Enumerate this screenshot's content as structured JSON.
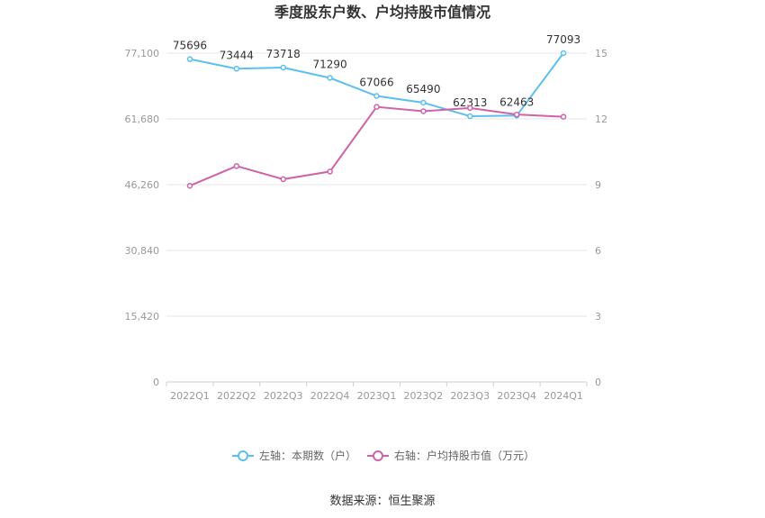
{
  "chart_data": {
    "type": "line",
    "title": "季度股东户数、户均持股市值情况",
    "categories": [
      "2022Q1",
      "2022Q2",
      "2022Q3",
      "2022Q4",
      "2023Q1",
      "2023Q2",
      "2023Q3",
      "2023Q4",
      "2024Q1"
    ],
    "y_left": {
      "ticks": [
        "0",
        "15,420",
        "30,840",
        "46,260",
        "61,680",
        "77,100"
      ],
      "range": [
        0,
        77100
      ]
    },
    "y_right": {
      "ticks": [
        "0",
        "3",
        "6",
        "9",
        "12",
        "15"
      ],
      "range": [
        0,
        15
      ]
    },
    "grid": true,
    "legend_position": "bottom",
    "series": [
      {
        "name": "左轴：本期数（户）",
        "axis": "left",
        "color": "#5bbfef",
        "values": [
          75696,
          73444,
          73718,
          71290,
          67066,
          65490,
          62313,
          62463,
          77093
        ],
        "labels": [
          "75696",
          "73444",
          "73718",
          "71290",
          "67066",
          "65490",
          "62313",
          "62463",
          "77093"
        ]
      },
      {
        "name": "右轴：户均持股市值（万元）",
        "axis": "right",
        "color": "#d063a8",
        "values": [
          8.95,
          9.85,
          9.25,
          9.6,
          12.55,
          12.35,
          12.5,
          12.2,
          12.1
        ]
      }
    ]
  },
  "source_text": "数据来源：恒生聚源"
}
